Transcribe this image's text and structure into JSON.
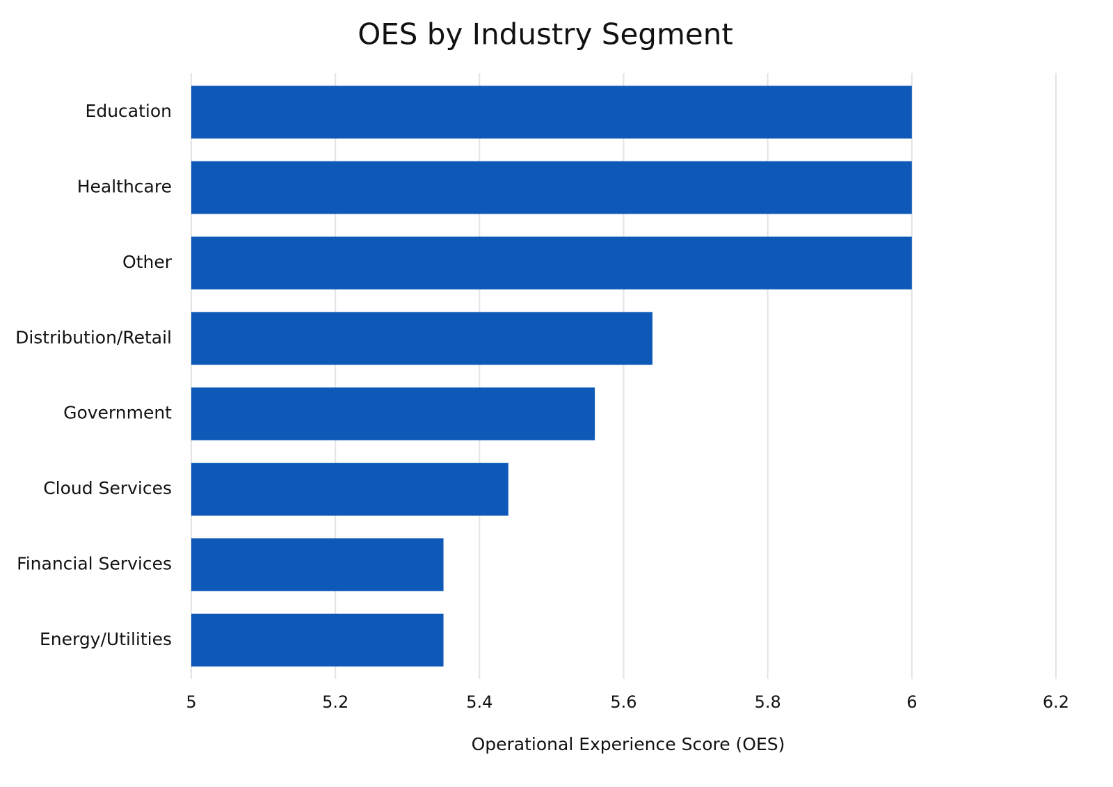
{
  "chart_data": {
    "type": "bar",
    "orientation": "horizontal",
    "title": "OES by Industry Segment",
    "x_label": "Operational Experience Score (OES)",
    "categories": [
      "Education",
      "Healthcare",
      "Other",
      "Distribution/Retail",
      "Government",
      "Cloud Services",
      "Financial Services",
      "Energy/Utilities"
    ],
    "values": [
      6.0,
      6.0,
      6.0,
      5.64,
      5.56,
      5.44,
      5.35,
      5.35
    ],
    "color": "#0e59b8",
    "xlim": [
      5,
      6.2
    ],
    "xticks": [
      5,
      5.2,
      5.4,
      5.6,
      5.8,
      6,
      6.2
    ],
    "grid": true
  }
}
